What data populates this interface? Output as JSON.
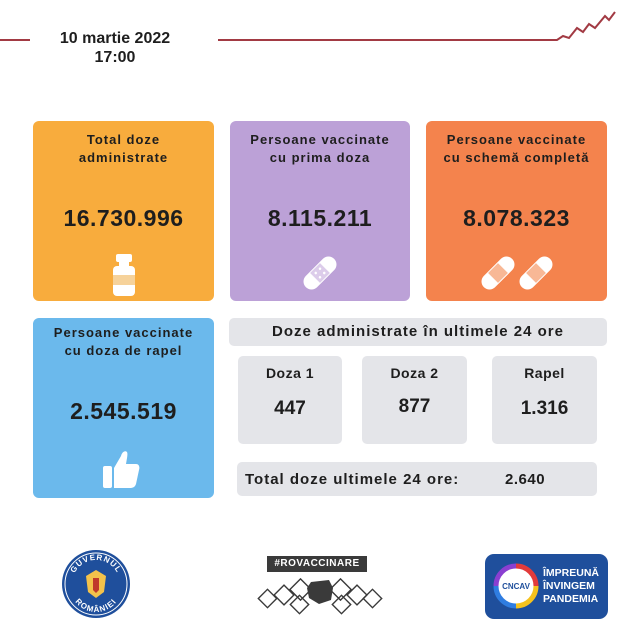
{
  "header": {
    "date": "10 martie 2022",
    "time": "17:00",
    "accent_color": "#a23a43"
  },
  "cards": {
    "total": {
      "title_line1": "Total doze",
      "title_line2": "administrate",
      "value": "16.730.996",
      "icon": "vaccine-vial-icon",
      "color": "#f8ac3d"
    },
    "first": {
      "title_line1": "Persoane vaccinate",
      "title_line2": "cu prima doza",
      "value": "8.115.211",
      "icon": "bandage-icon",
      "color": "#bca1d7"
    },
    "full": {
      "title_line1": "Persoane vaccinate",
      "title_line2": "cu schemă completă",
      "value": "8.078.323",
      "icon": "two-bandages-icon",
      "color": "#f4834d"
    },
    "booster": {
      "title_line1": "Persoane  vaccinate",
      "title_line2": "cu doza de rapel",
      "value": "2.545.519",
      "icon": "thumbs-up-icon",
      "color": "#6bb9ec"
    }
  },
  "last24h": {
    "title": "Doze administrate în ultimele 24 ore",
    "doses": [
      {
        "label": "Doza 1",
        "value": "447"
      },
      {
        "label": "Doza 2",
        "value": "877"
      },
      {
        "label": "Rapel",
        "value": "1.316"
      }
    ],
    "total_label": "Total doze ultimele 24 ore:",
    "total_value": "2.640"
  },
  "logos": {
    "government_top": "GUVERNUL",
    "government_bottom": "ROMÂNIEI",
    "campaign_hashtag": "#ROVACCINARE",
    "cncav_line1": "ÎMPREUNĂ",
    "cncav_line2": "ÎNVINGEM",
    "cncav_line3": "PANDEMIA",
    "cncav_abbr": "CNCAV"
  }
}
